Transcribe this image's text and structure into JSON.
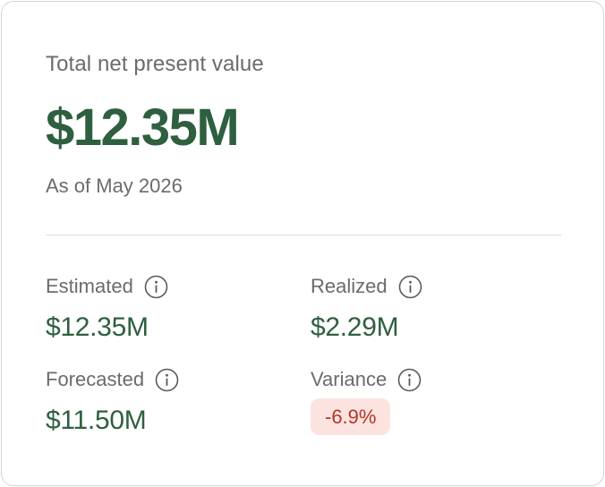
{
  "card": {
    "title": "Total net present value",
    "total_value": "$12.35M",
    "as_of": "As of May 2026"
  },
  "metrics": {
    "estimated": {
      "label": "Estimated",
      "value": "$12.35M",
      "icon": "info-icon"
    },
    "realized": {
      "label": "Realized",
      "value": "$2.29M",
      "icon": "info-icon"
    },
    "forecasted": {
      "label": "Forecasted",
      "value": "$11.50M",
      "icon": "info-icon"
    },
    "variance": {
      "label": "Variance",
      "value": "-6.9%",
      "icon": "info-icon",
      "status": "negative"
    }
  },
  "colors": {
    "value_green": "#2e5f3f",
    "label_gray": "#6b6b6b",
    "variance_text": "#b0372a",
    "variance_bg": "#fde3df"
  }
}
